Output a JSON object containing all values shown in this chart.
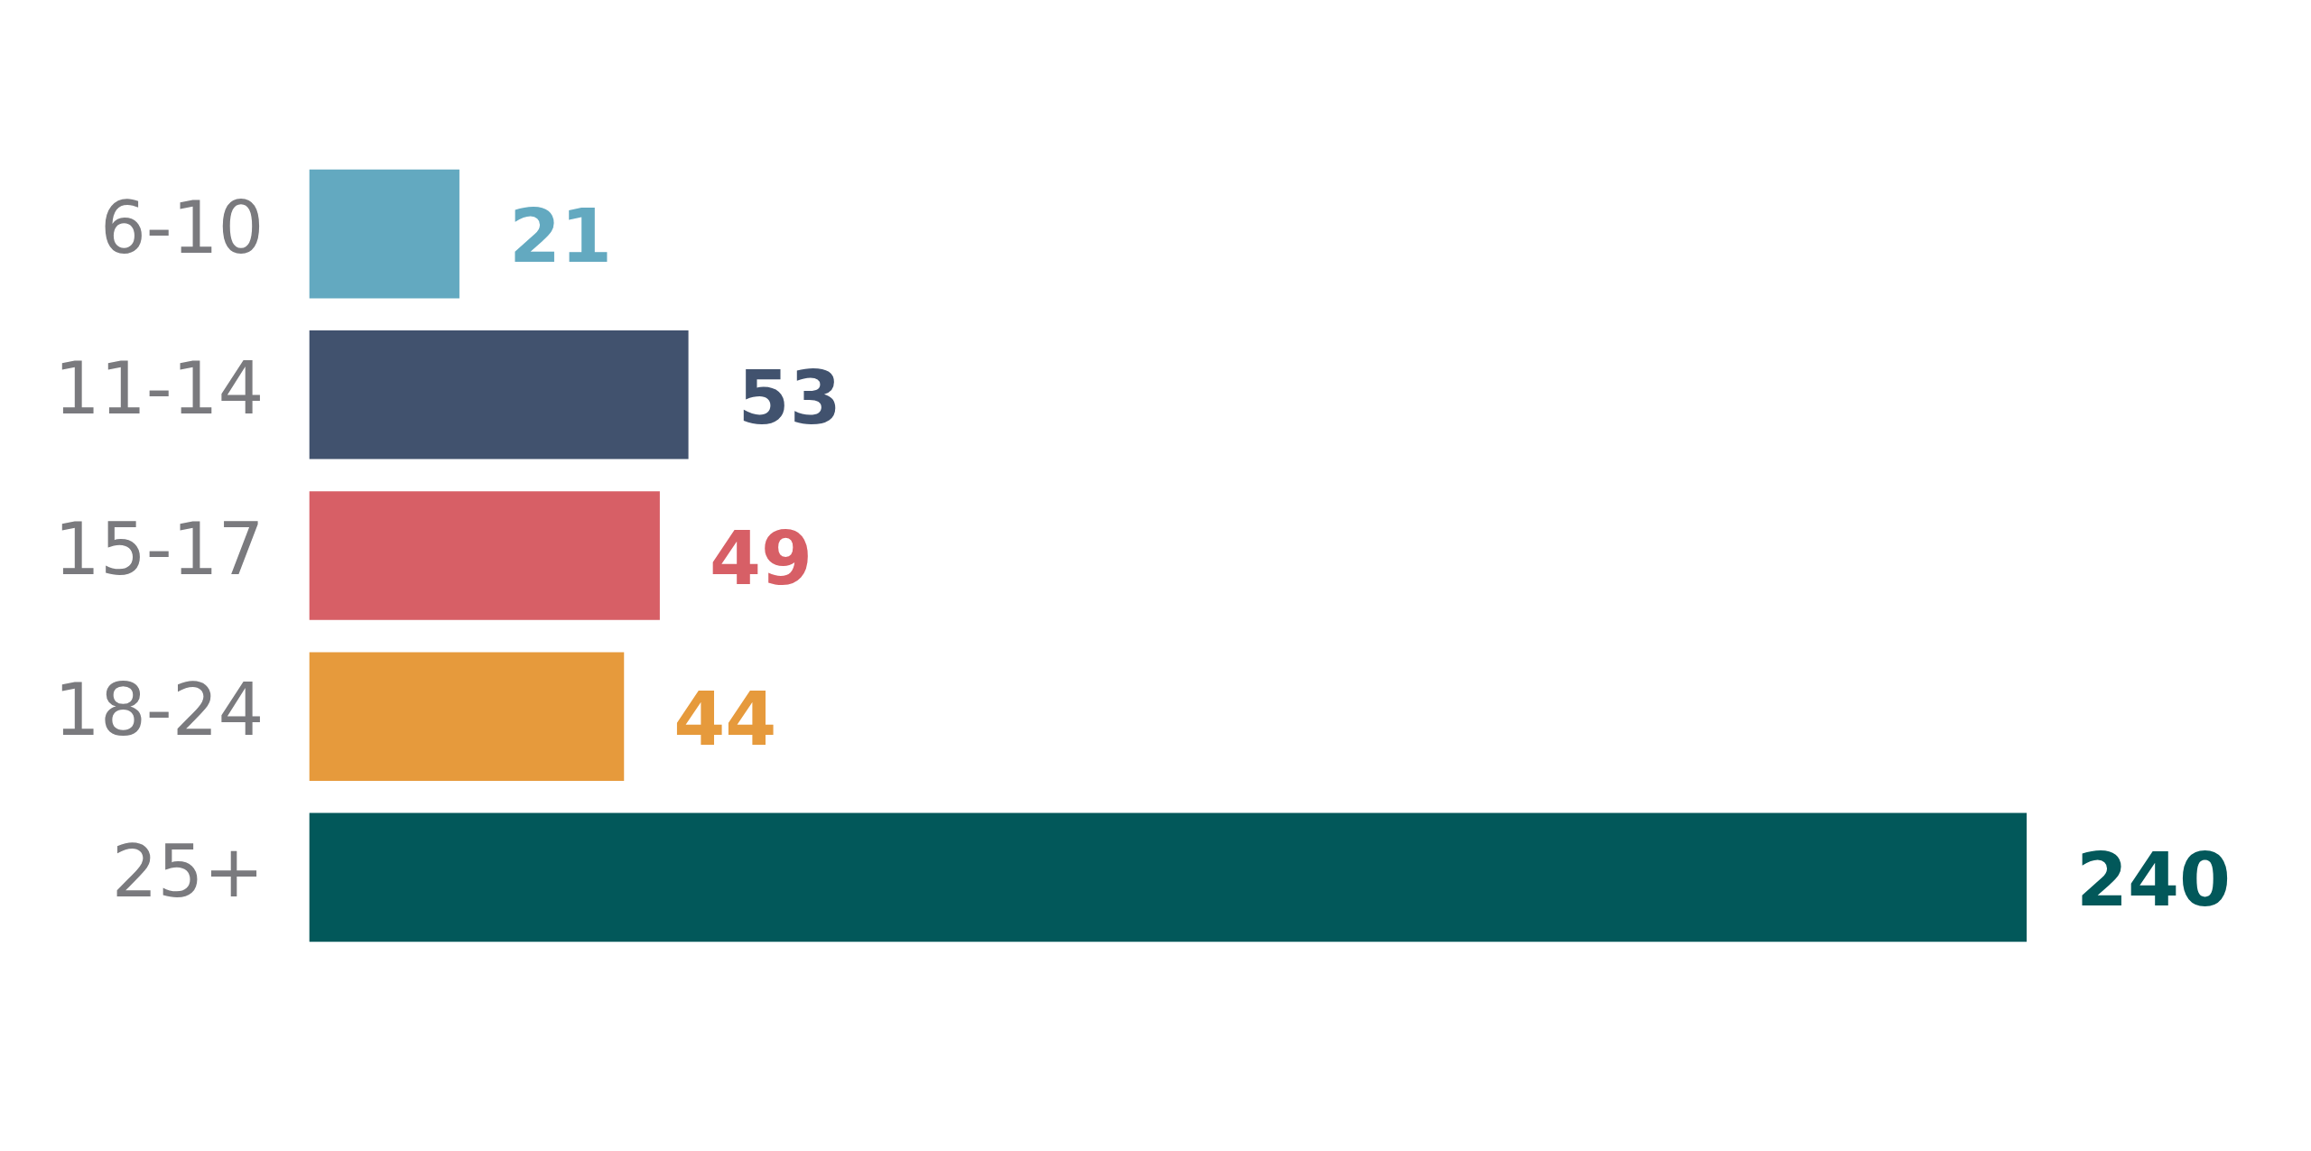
{
  "chart_data": {
    "type": "bar",
    "orientation": "horizontal",
    "categories": [
      "6-10",
      "11-14",
      "15-17",
      "18-24",
      "25+"
    ],
    "values": [
      21,
      53,
      49,
      44,
      240
    ],
    "colors": [
      "#63a9c0",
      "#41526e",
      "#d75f66",
      "#e69a3c",
      "#02585a"
    ],
    "data_labels": true
  }
}
